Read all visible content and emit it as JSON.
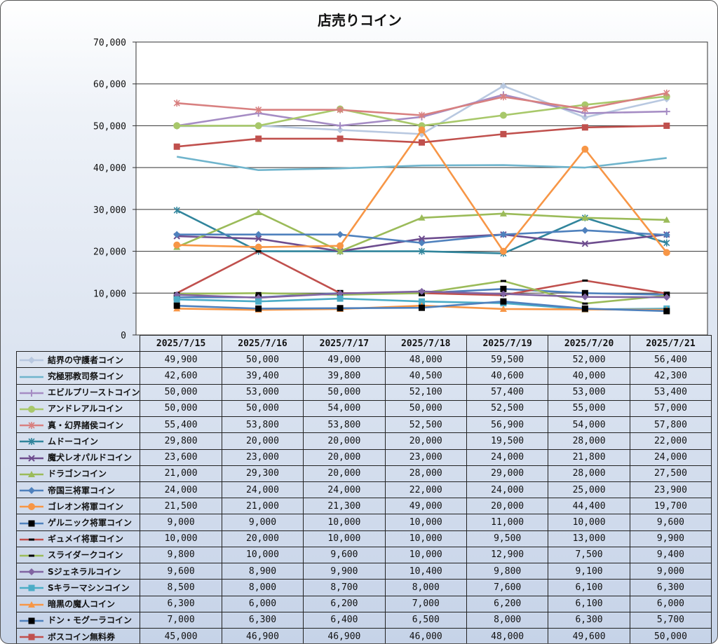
{
  "chart_data": {
    "type": "line",
    "title": "店売りコイン",
    "categories": [
      "2025/7/15",
      "2025/7/16",
      "2025/7/17",
      "2025/7/18",
      "2025/7/19",
      "2025/7/20",
      "2025/7/21"
    ],
    "ylim": [
      0,
      70000
    ],
    "yticks": [
      "0",
      "10,000",
      "20,000",
      "30,000",
      "40,000",
      "50,000",
      "60,000",
      "70,000"
    ],
    "grid": true,
    "legend": "data-table",
    "series": [
      {
        "name": "結界の守護者コイン",
        "color": "#b8c8e0",
        "marker": "diamond",
        "values": [
          49900,
          50000,
          49000,
          48000,
          59500,
          52000,
          56400
        ],
        "labels": [
          "49,900",
          "50,000",
          "49,000",
          "48,000",
          "59,500",
          "52,000",
          "56,400"
        ]
      },
      {
        "name": "究極邪教司祭コイン",
        "color": "#6fb4cc",
        "marker": "none",
        "values": [
          42600,
          39400,
          39800,
          40500,
          40600,
          40000,
          42300
        ],
        "labels": [
          "42,600",
          "39,400",
          "39,800",
          "40,500",
          "40,600",
          "40,000",
          "42,300"
        ]
      },
      {
        "name": "エビルプリーストコイン",
        "color": "#a58cc4",
        "marker": "plus",
        "values": [
          50000,
          53000,
          50000,
          52100,
          57400,
          53000,
          53400
        ],
        "labels": [
          "50,000",
          "53,000",
          "50,000",
          "52,100",
          "57,400",
          "53,000",
          "53,400"
        ]
      },
      {
        "name": "アンドレアルコイン",
        "color": "#a8c86a",
        "marker": "circle",
        "values": [
          50000,
          50000,
          54000,
          50000,
          52500,
          55000,
          57000
        ],
        "labels": [
          "50,000",
          "50,000",
          "54,000",
          "50,000",
          "52,500",
          "55,000",
          "57,000"
        ]
      },
      {
        "name": "真・幻界諸侯コイン",
        "color": "#d88080",
        "marker": "star",
        "values": [
          55400,
          53800,
          53800,
          52500,
          56900,
          54000,
          57800
        ],
        "labels": [
          "55,400",
          "53,800",
          "53,800",
          "52,500",
          "56,900",
          "54,000",
          "57,800"
        ]
      },
      {
        "name": "ムドーコイン",
        "color": "#31859c",
        "marker": "star",
        "values": [
          29800,
          20000,
          20000,
          20000,
          19500,
          28000,
          22000
        ],
        "labels": [
          "29,800",
          "20,000",
          "20,000",
          "20,000",
          "19,500",
          "28,000",
          "22,000"
        ]
      },
      {
        "name": "魔犬レオパルドコイン",
        "color": "#6d4c8e",
        "marker": "x",
        "values": [
          23600,
          23000,
          20000,
          23000,
          24000,
          21800,
          24000
        ],
        "labels": [
          "23,600",
          "23,000",
          "20,000",
          "23,000",
          "24,000",
          "21,800",
          "24,000"
        ]
      },
      {
        "name": "ドラゴンコイン",
        "color": "#9bbb59",
        "marker": "triangle",
        "values": [
          21000,
          29300,
          20000,
          28000,
          29000,
          28000,
          27500
        ],
        "labels": [
          "21,000",
          "29,300",
          "20,000",
          "28,000",
          "29,000",
          "28,000",
          "27,500"
        ]
      },
      {
        "name": "帝国三将軍コイン",
        "color": "#4f81bd",
        "marker": "diamond",
        "values": [
          24000,
          24000,
          24000,
          22000,
          24000,
          25000,
          23900
        ],
        "labels": [
          "24,000",
          "24,000",
          "24,000",
          "22,000",
          "24,000",
          "25,000",
          "23,900"
        ]
      },
      {
        "name": "ゴレオン将軍コイン",
        "color": "#f79646",
        "marker": "circle",
        "values": [
          21500,
          21000,
          21300,
          49000,
          20000,
          44400,
          19700
        ],
        "labels": [
          "21,500",
          "21,000",
          "21,300",
          "49,000",
          "20,000",
          "44,400",
          "19,700"
        ]
      },
      {
        "name": "ゲルニック将軍コイン",
        "color": "#4f81bd",
        "marker": "square-black",
        "values": [
          9000,
          9000,
          10000,
          10000,
          11000,
          10000,
          9600
        ],
        "labels": [
          "9,000",
          "9,000",
          "10,000",
          "10,000",
          "11,000",
          "10,000",
          "9,600"
        ]
      },
      {
        "name": "ギュメイ将軍コイン",
        "color": "#c0504d",
        "marker": "dash-black",
        "values": [
          10000,
          20000,
          10000,
          10000,
          9500,
          13000,
          9900
        ],
        "labels": [
          "10,000",
          "20,000",
          "10,000",
          "10,000",
          "9,500",
          "13,000",
          "9,900"
        ]
      },
      {
        "name": "スライダークコイン",
        "color": "#9bbb59",
        "marker": "dash-black",
        "values": [
          9800,
          10000,
          9600,
          10000,
          12900,
          7500,
          9400
        ],
        "labels": [
          "9,800",
          "10,000",
          "9,600",
          "10,000",
          "12,900",
          "7,500",
          "9,400"
        ]
      },
      {
        "name": "Sジェネラルコイン",
        "color": "#8064a2",
        "marker": "diamond",
        "values": [
          9600,
          8900,
          9900,
          10400,
          9800,
          9100,
          9000
        ],
        "labels": [
          "9,600",
          "8,900",
          "9,900",
          "10,400",
          "9,800",
          "9,100",
          "9,000"
        ]
      },
      {
        "name": "Sキラーマシンコイン",
        "color": "#4bacc6",
        "marker": "square",
        "values": [
          8500,
          8000,
          8700,
          8000,
          7600,
          6100,
          6300
        ],
        "labels": [
          "8,500",
          "8,000",
          "8,700",
          "8,000",
          "7,600",
          "6,100",
          "6,300"
        ]
      },
      {
        "name": "暗黒の魔人コイン",
        "color": "#f79646",
        "marker": "triangle",
        "values": [
          6300,
          6000,
          6200,
          7000,
          6200,
          6100,
          6000
        ],
        "labels": [
          "6,300",
          "6,000",
          "6,200",
          "7,000",
          "6,200",
          "6,100",
          "6,000"
        ]
      },
      {
        "name": "ドン・モグーラコイン",
        "color": "#4f81bd",
        "marker": "square-black",
        "values": [
          7000,
          6300,
          6400,
          6500,
          8000,
          6300,
          5700
        ],
        "labels": [
          "7,000",
          "6,300",
          "6,400",
          "6,500",
          "8,000",
          "6,300",
          "5,700"
        ]
      },
      {
        "name": "ボスコイン無料券",
        "color": "#c0504d",
        "marker": "square",
        "values": [
          45000,
          46900,
          46900,
          46000,
          48000,
          49600,
          50000
        ],
        "labels": [
          "45,000",
          "46,900",
          "46,900",
          "46,000",
          "48,000",
          "49,600",
          "50,000"
        ]
      }
    ]
  }
}
